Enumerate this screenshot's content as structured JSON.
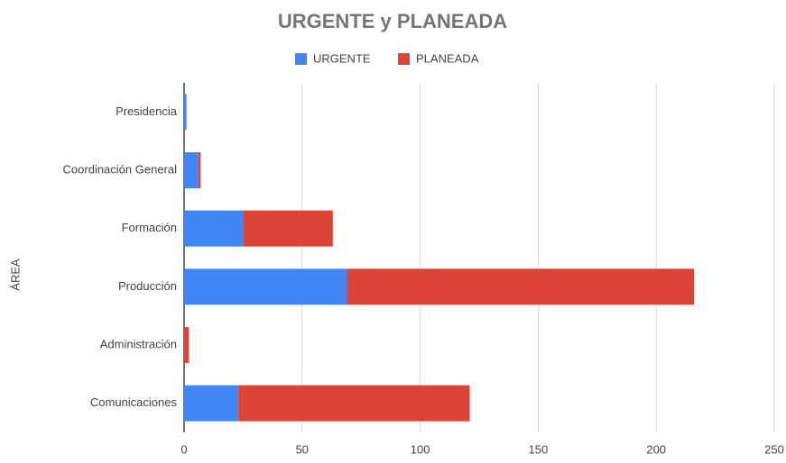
{
  "chart_data": {
    "type": "stacked-bar-horizontal",
    "title": "URGENTE y PLANEADA",
    "y_label": "ÁREA",
    "categories": [
      "Presidencia",
      "Coordinación General",
      "Formación",
      "Producción",
      "Administración",
      "Comunicaciones"
    ],
    "series": [
      {
        "name": "URGENTE",
        "color": "#4285f4",
        "values": [
          1,
          6,
          25,
          69,
          0,
          23
        ]
      },
      {
        "name": "PLANEADA",
        "color": "#db4437",
        "values": [
          0,
          1,
          38,
          147,
          2,
          98
        ]
      }
    ],
    "xlim": [
      0,
      250
    ],
    "xticks": [
      0,
      50,
      100,
      150,
      200,
      250
    ],
    "grid": true,
    "legend": "top"
  }
}
